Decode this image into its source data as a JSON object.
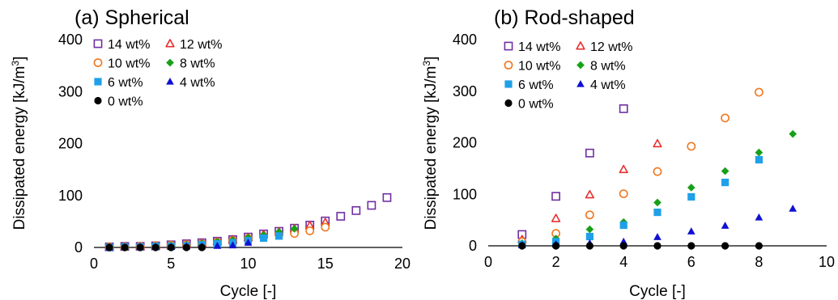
{
  "chart_data": [
    {
      "type": "scatter",
      "title": "(a) Spherical",
      "xlabel": "Cycle [-]",
      "ylabel": "Dissipated energy [kJ/m",
      "ylabel_superscript": "3",
      "ylabel_close": "]",
      "xlim": [
        0,
        20
      ],
      "ylim": [
        0,
        400
      ],
      "xticks": [
        0,
        5,
        10,
        15,
        20
      ],
      "yticks": [
        0,
        100,
        200,
        300,
        400
      ],
      "grid": false,
      "legend": "top-left",
      "series": [
        {
          "name": "14 wt%",
          "marker": "open-square",
          "color": "#7030A0",
          "x": [
            1,
            2,
            3,
            4,
            5,
            6,
            7,
            8,
            9,
            10,
            11,
            12,
            13,
            14,
            15,
            16,
            17,
            18,
            19
          ],
          "y": [
            1,
            2,
            2,
            3,
            5,
            7,
            9,
            12,
            15,
            20,
            26,
            31,
            37,
            43,
            51,
            60,
            71,
            81,
            96
          ]
        },
        {
          "name": "12 wt%",
          "marker": "open-triangle",
          "color": "#E83030",
          "x": [
            1,
            2,
            3,
            4,
            5,
            6,
            7,
            8,
            9,
            10,
            11,
            12,
            13,
            14,
            15
          ],
          "y": [
            1,
            1,
            2,
            3,
            4,
            6,
            8,
            11,
            15,
            19,
            25,
            30,
            36,
            42,
            48
          ]
        },
        {
          "name": "10 wt%",
          "marker": "open-circle",
          "color": "#F07820",
          "x": [
            1,
            2,
            3,
            4,
            5,
            6,
            7,
            8,
            9,
            10,
            11,
            12,
            13,
            14,
            15
          ],
          "y": [
            1,
            1,
            2,
            3,
            4,
            5,
            7,
            10,
            13,
            17,
            21,
            25,
            27,
            32,
            39
          ]
        },
        {
          "name": "8 wt%",
          "marker": "filled-diamond",
          "color": "#18A018",
          "x": [
            1,
            2,
            3,
            4,
            5,
            6,
            7,
            8,
            9,
            10,
            11,
            12,
            13
          ],
          "y": [
            1,
            1,
            2,
            3,
            4,
            5,
            8,
            11,
            14,
            19,
            24,
            30,
            36
          ]
        },
        {
          "name": "6 wt%",
          "marker": "filled-square",
          "color": "#20A0E8",
          "x": [
            1,
            2,
            3,
            4,
            5,
            6,
            7,
            8,
            9,
            10,
            11,
            12
          ],
          "y": [
            0,
            1,
            1,
            2,
            2,
            3,
            5,
            7,
            9,
            13,
            18,
            22
          ]
        },
        {
          "name": "4 wt%",
          "marker": "filled-triangle",
          "color": "#1010D0",
          "x": [
            1,
            2,
            3,
            4,
            5,
            6,
            7,
            8,
            9,
            10
          ],
          "y": [
            0,
            0,
            1,
            1,
            1,
            2,
            2,
            3,
            4,
            9
          ]
        },
        {
          "name": "0 wt%",
          "marker": "filled-circle",
          "color": "#000000",
          "x": [
            1,
            2,
            3,
            4,
            5,
            6,
            7
          ],
          "y": [
            0,
            0,
            0,
            0,
            0,
            0,
            0
          ]
        }
      ]
    },
    {
      "type": "scatter",
      "title": "(b) Rod-shaped",
      "xlabel": "Cycle [-]",
      "ylabel": "Dissipated energy [kJ/m",
      "ylabel_superscript": "3",
      "ylabel_close": "]",
      "xlim": [
        0,
        10
      ],
      "ylim": [
        0,
        400
      ],
      "xticks": [
        0,
        2,
        4,
        6,
        8,
        10
      ],
      "yticks": [
        0,
        100,
        200,
        300,
        400
      ],
      "grid": false,
      "legend": "top-left",
      "series": [
        {
          "name": "14 wt%",
          "marker": "open-square",
          "color": "#7030A0",
          "x": [
            1,
            2,
            3,
            4
          ],
          "y": [
            22,
            96,
            180,
            266
          ]
        },
        {
          "name": "12 wt%",
          "marker": "open-triangle",
          "color": "#E83030",
          "x": [
            1,
            2,
            3,
            4,
            5
          ],
          "y": [
            12,
            53,
            99,
            148,
            198
          ]
        },
        {
          "name": "10 wt%",
          "marker": "open-circle",
          "color": "#F07820",
          "x": [
            1,
            2,
            3,
            4,
            5,
            6,
            7,
            8
          ],
          "y": [
            8,
            24,
            60,
            101,
            144,
            193,
            248,
            298
          ]
        },
        {
          "name": "8 wt%",
          "marker": "filled-diamond",
          "color": "#18A018",
          "x": [
            1,
            2,
            3,
            4,
            5,
            6,
            7,
            8,
            9
          ],
          "y": [
            5,
            14,
            32,
            46,
            84,
            113,
            145,
            181,
            217
          ]
        },
        {
          "name": "6 wt%",
          "marker": "filled-square",
          "color": "#20A0E8",
          "x": [
            1,
            2,
            3,
            4,
            5,
            6,
            7,
            8
          ],
          "y": [
            3,
            8,
            18,
            40,
            65,
            95,
            123,
            167
          ]
        },
        {
          "name": "4 wt%",
          "marker": "filled-triangle",
          "color": "#1010D0",
          "x": [
            1,
            2,
            3,
            4,
            5,
            6,
            7,
            8,
            9
          ],
          "y": [
            1,
            3,
            5,
            8,
            17,
            28,
            39,
            55,
            72
          ]
        },
        {
          "name": "0 wt%",
          "marker": "filled-circle",
          "color": "#000000",
          "x": [
            1,
            2,
            3,
            4,
            5,
            6,
            7,
            8
          ],
          "y": [
            0,
            0,
            0,
            0,
            0,
            0,
            0,
            0
          ]
        }
      ]
    }
  ]
}
